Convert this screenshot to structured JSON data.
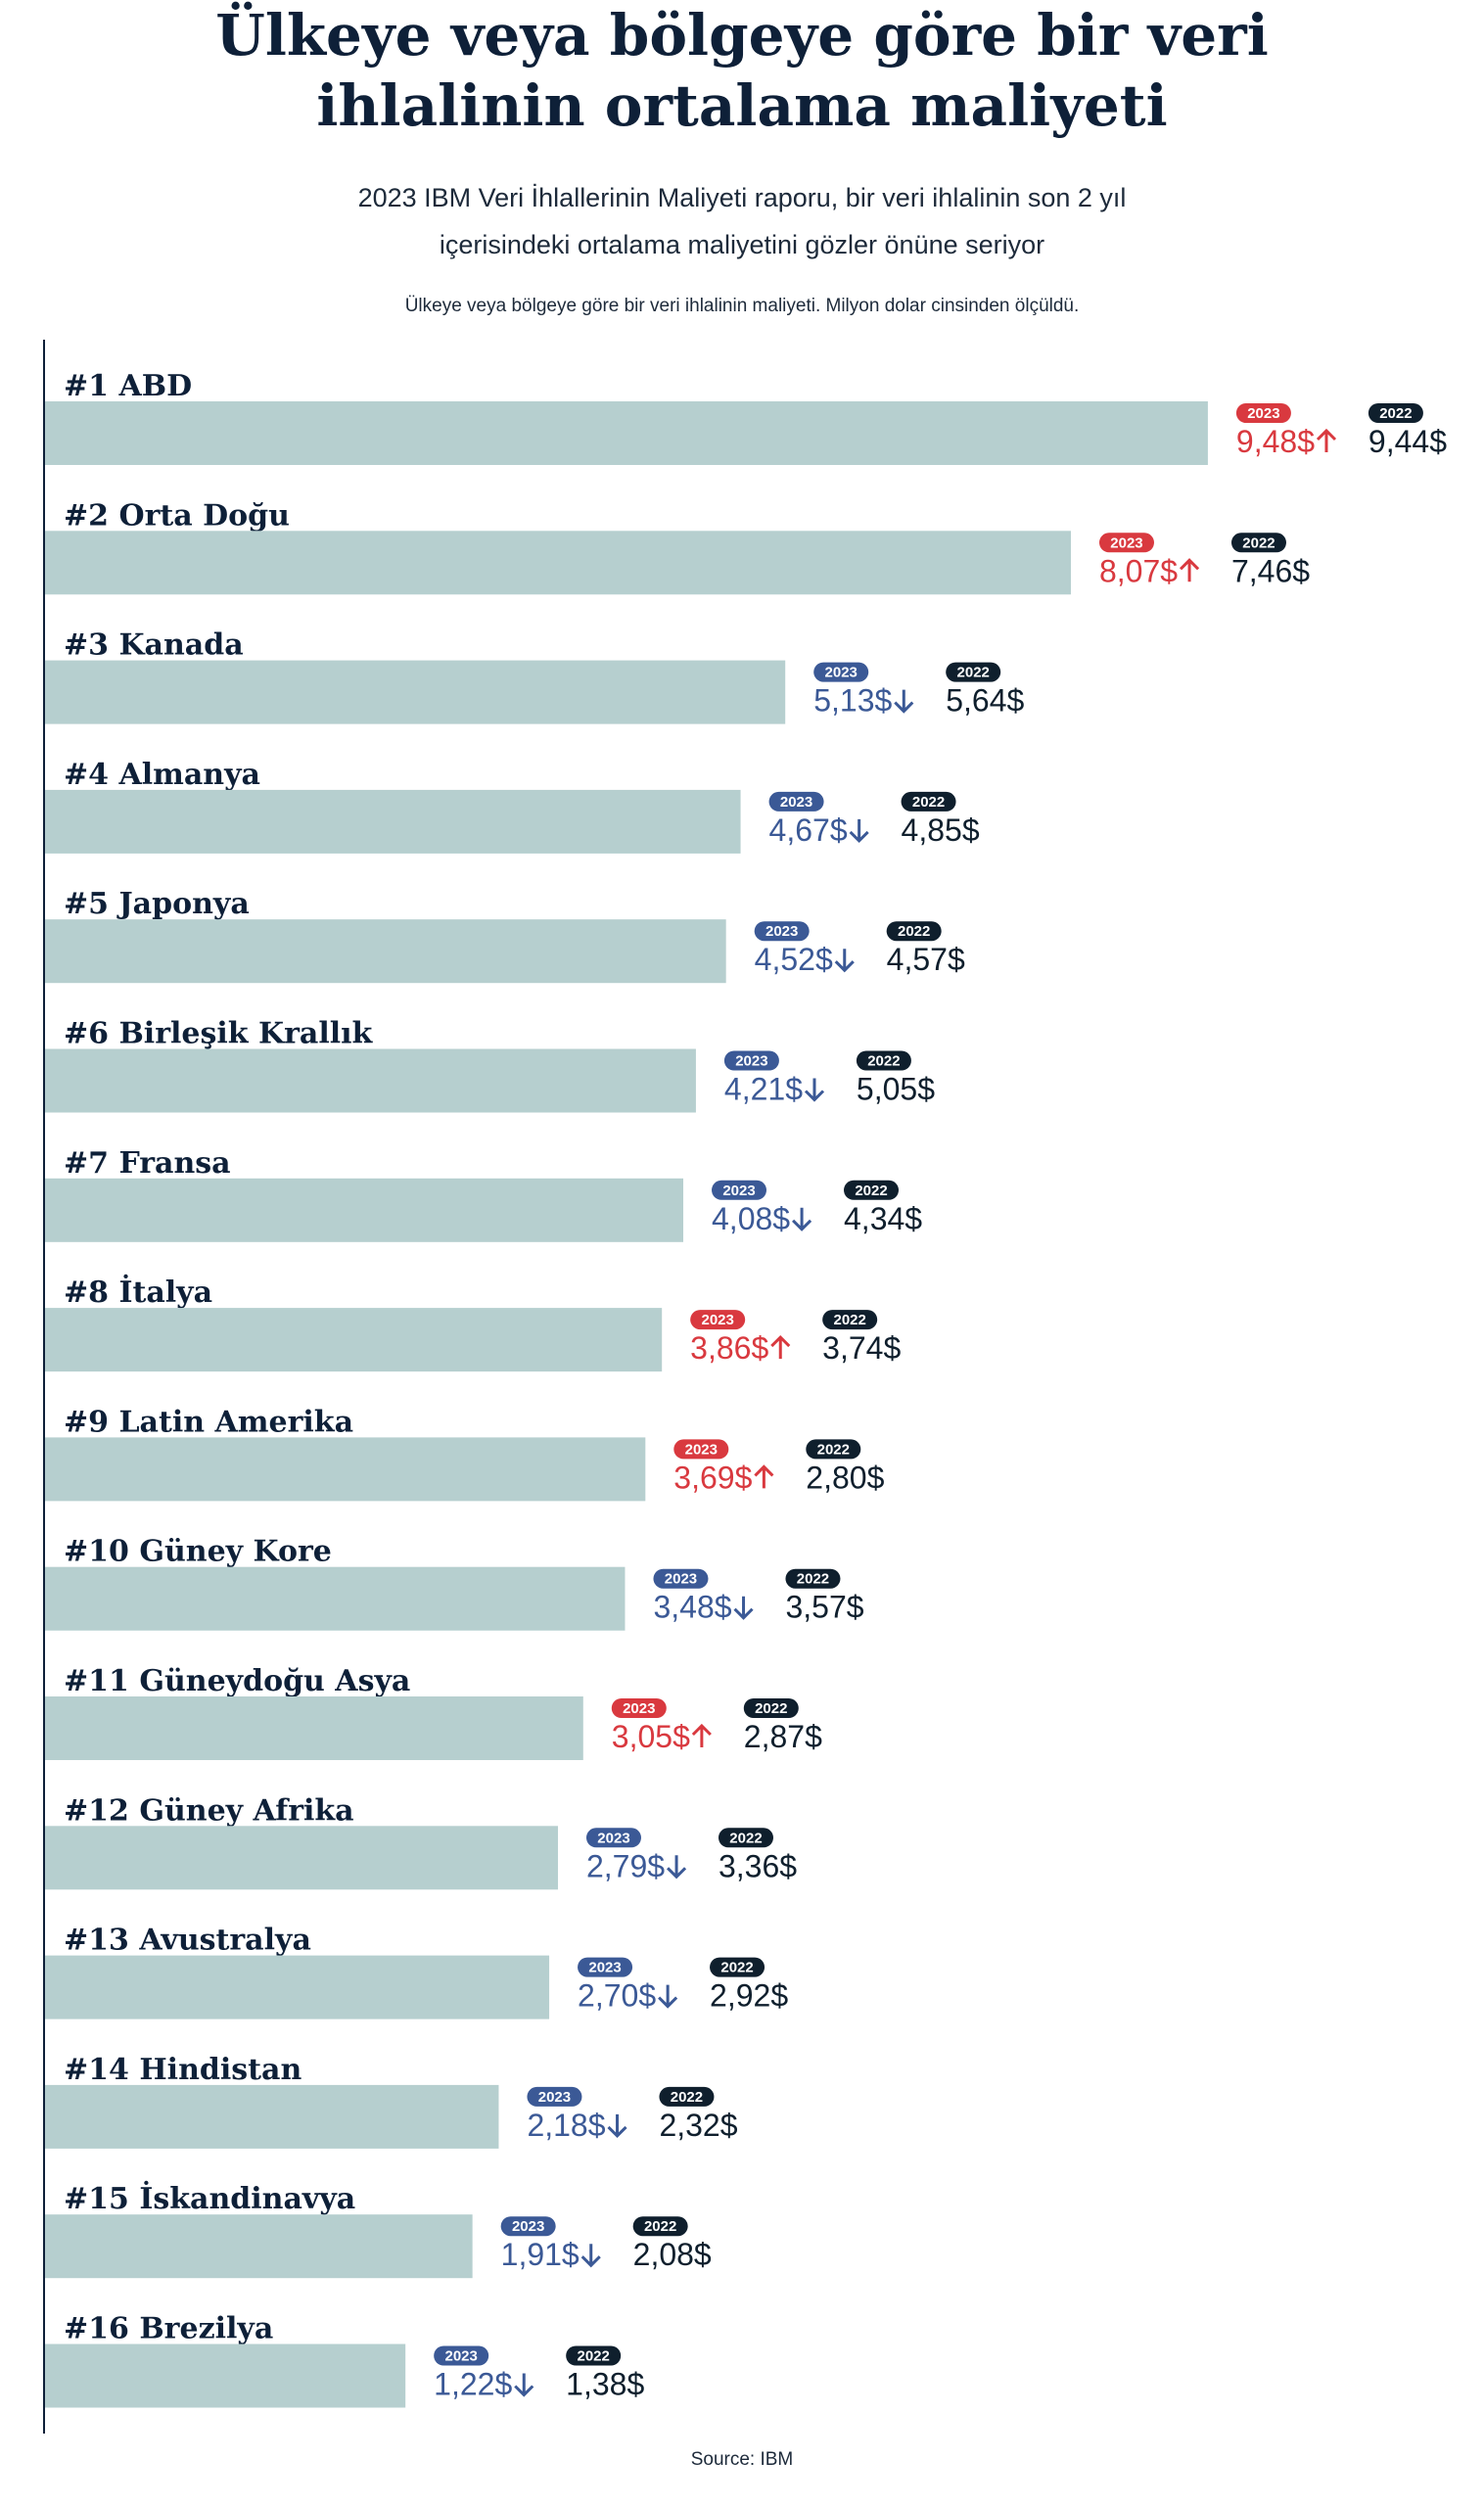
{
  "chart_data": {
    "type": "bar",
    "orientation": "horizontal",
    "title": "Ülkeye veya bölgeye göre bir veri ihlalinin ortalama maliyeti",
    "subtitle": "2023 IBM Veri İhlallerinin Maliyeti raporu, bir veri ihlalinin son 2 yıl içerisindeki ortalama maliyetini gözler önüne seriyor",
    "note": "Ülkeye veya bölgeye göre bir veri ihlalinin maliyeti. Milyon dolar cinsinden ölçüldü.",
    "source": "Source: IBM",
    "categories": [
      "#1 ABD",
      "#2 Orta Doğu",
      "#3 Kanada",
      "#4 Almanya",
      "#5 Japonya",
      "#6 Birleşik Krallık",
      "#7 Fransa",
      "#8 İtalya",
      "#9 Latin Amerika",
      "#10 Güney Kore",
      "#11 Güneydoğu Asya",
      "#12 Güney Afrika",
      "#13 Avustralya",
      "#14 Hindistan",
      "#15 İskandinavya",
      "#16 Brezilya"
    ],
    "series": [
      {
        "name": "2023",
        "color": "#b6cfcf",
        "values": [
          9.48,
          8.07,
          5.13,
          4.67,
          4.52,
          4.21,
          4.08,
          3.86,
          3.69,
          3.48,
          3.05,
          2.79,
          2.7,
          2.18,
          1.91,
          1.22
        ],
        "value_labels": [
          "9,48$",
          "8,07$",
          "5,13$",
          "4,67$",
          "4,52$",
          "4,21$",
          "4,08$",
          "3,86$",
          "3,69$",
          "3,48$",
          "3,05$",
          "2,79$",
          "2,70$",
          "2,18$",
          "1,91$",
          "1,22$"
        ]
      },
      {
        "name": "2022",
        "color": "#0f1f2d",
        "values": [
          9.44,
          7.46,
          5.64,
          4.85,
          4.57,
          5.05,
          4.34,
          3.74,
          2.8,
          3.57,
          2.87,
          3.36,
          2.92,
          2.32,
          2.08,
          1.38
        ],
        "value_labels": [
          "9,44$",
          "7,46$",
          "5,64$",
          "4,85$",
          "4,57$",
          "5,05$",
          "4,34$",
          "3,74$",
          "2,80$",
          "3,57$",
          "2,87$",
          "3,36$",
          "2,92$",
          "2,32$",
          "2,08$",
          "1,38$"
        ]
      }
    ],
    "increase_color": "#d9393f",
    "decrease_color": "#3b5996",
    "xlim": [
      -2.5,
      12
    ]
  }
}
